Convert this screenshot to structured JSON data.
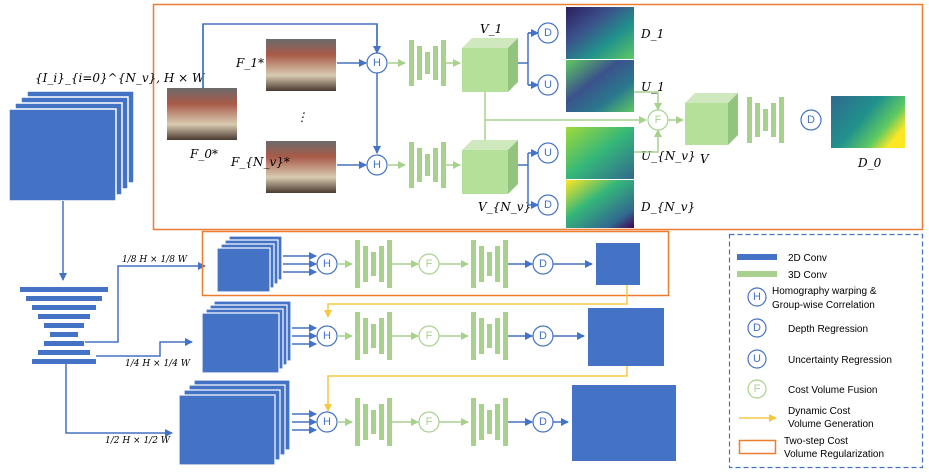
{
  "inputs_label": "{I_i}_{i=0}^{N_v}, H × W",
  "scale_labels": [
    "1/8 H × 1/8 W",
    "1/4 H × 1/4 W",
    "1/2 H × 1/2 W"
  ],
  "feature_labels": {
    "f0": "F_0*",
    "f1": "F_1*",
    "fnv": "F_{N_v}*",
    "dots": "⋮"
  },
  "volume_labels": {
    "v1": "V_1",
    "vnv": "V_{N_v}",
    "v": "V"
  },
  "map_labels": {
    "d1": "D_1",
    "u1": "U_1",
    "unv": "U_{N_v}",
    "dnv": "D_{N_v}",
    "d0": "D_0"
  },
  "symbols": {
    "h": "H",
    "d": "D",
    "u": "U",
    "f": "F"
  },
  "colors": {
    "conv2d": "#4472c4",
    "conv3d": "#a9d18e",
    "vol3d": "#b4e09a",
    "fusion": "#a9d18e",
    "dynamic": "#f5c842",
    "regularization": "#ed7d31",
    "legend_border": "#4472c4"
  },
  "legend": {
    "items": [
      {
        "icon": "blue-bar",
        "label": "2D Conv"
      },
      {
        "icon": "green-bar",
        "label": "3D Conv"
      },
      {
        "icon": "h-circle",
        "symbol": "H",
        "label": "Homography warping &\nGroup-wise Correlation"
      },
      {
        "icon": "d-circle",
        "symbol": "D",
        "label": "Depth Regression"
      },
      {
        "icon": "u-circle",
        "symbol": "U",
        "label": "Uncertainty Regression"
      },
      {
        "icon": "f-circle",
        "symbol": "F",
        "label": "Cost Volume Fusion"
      },
      {
        "icon": "yellow-arrow",
        "label": "Dynamic Cost\nVolume Generation"
      },
      {
        "icon": "orange-rect",
        "label": "Two-step Cost\nVolume Regularization"
      }
    ]
  }
}
